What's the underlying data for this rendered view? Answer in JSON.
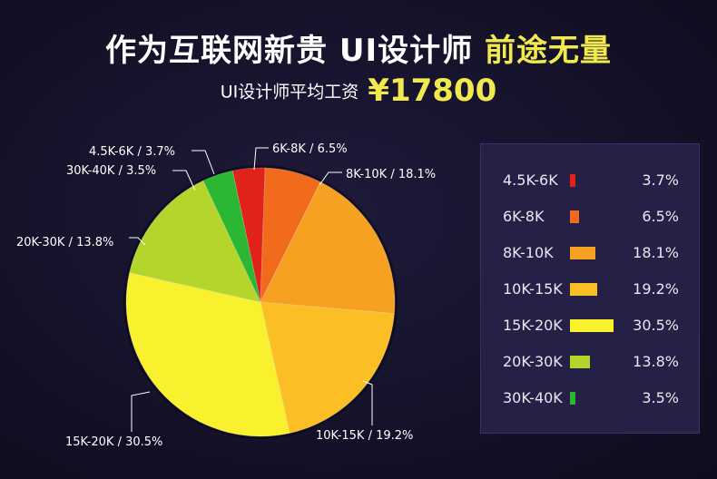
{
  "header": {
    "title_main": "作为互联网新贵  UI设计师",
    "title_accent": "前途无量",
    "subtitle_label": "UI设计师平均工资",
    "subtitle_value": "¥17800"
  },
  "chart_data": {
    "type": "pie",
    "categories": [
      "4.5K-6K",
      "6K-8K",
      "8K-10K",
      "10K-15K",
      "15K-20K",
      "20K-30K",
      "30K-40K"
    ],
    "values": [
      3.7,
      6.5,
      18.1,
      19.2,
      30.5,
      13.8,
      3.5
    ],
    "labels": [
      "4.5K-6K / 3.7%",
      "6K-8K / 6.5%",
      "8K-10K / 18.1%",
      "10K-15K / 19.2%",
      "15K-20K / 30.5%",
      "20K-30K / 13.8%",
      "30K-40K / 3.5%"
    ],
    "legend_values": [
      "3.7%",
      "6.5%",
      "18.1%",
      "19.2%",
      "30.5%",
      "13.8%",
      "3.5%"
    ],
    "colors": [
      "#e0221b",
      "#f26b1d",
      "#f7a123",
      "#fbbf25",
      "#f9f12e",
      "#b4d62c",
      "#2bb734"
    ],
    "legend_placement": "right"
  }
}
